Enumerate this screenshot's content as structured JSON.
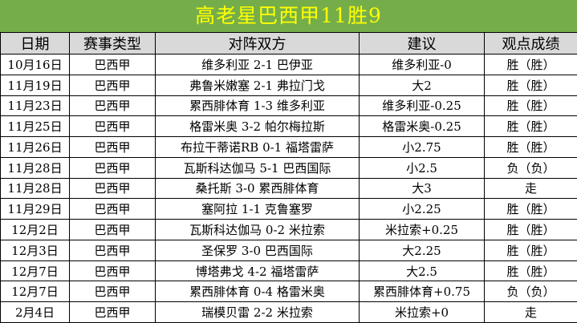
{
  "title": "高老星巴西甲11胜9",
  "table": {
    "headers": [
      "日期",
      "赛事类型",
      "对阵双方",
      "建议",
      "观点成绩"
    ],
    "rows": [
      {
        "date": "10月16日",
        "league": "巴西甲",
        "match": "维多利亚 2-1 巴伊亚",
        "tip": "维多利亚-0",
        "result": "胜（胜）",
        "result_type": "win"
      },
      {
        "date": "11月19日",
        "league": "巴西甲",
        "match": "弗鲁米嫩塞 2-1 弗拉门戈",
        "tip": "大2",
        "result": "胜（胜）",
        "result_type": "win"
      },
      {
        "date": "11月23日",
        "league": "巴西甲",
        "match": "累西腓体育 1-3 维多利亚",
        "tip": "维多利亚-0.25",
        "result": "胜（胜）",
        "result_type": "win"
      },
      {
        "date": "11月25日",
        "league": "巴西甲",
        "match": "格雷米奥 3-2 帕尔梅拉斯",
        "tip": "格雷米奥-0.25",
        "result": "胜（胜）",
        "result_type": "win"
      },
      {
        "date": "11月26日",
        "league": "巴西甲",
        "match": "布拉干蒂诺RB 0-1 福塔雷萨",
        "tip": "小2.75",
        "result": "胜（胜）",
        "result_type": "win"
      },
      {
        "date": "11月28日",
        "league": "巴西甲",
        "match": "瓦斯科达伽马 5-1 巴西国际",
        "tip": "小2.5",
        "result": "负（负）",
        "result_type": "loss"
      },
      {
        "date": "11月28日",
        "league": "巴西甲",
        "match": "桑托斯 3-0 累西腓体育",
        "tip": "大3",
        "result": "走",
        "result_type": "push"
      },
      {
        "date": "11月29日",
        "league": "巴西甲",
        "match": "塞阿拉 1-1 克鲁塞罗",
        "tip": "小2.25",
        "result": "胜（胜）",
        "result_type": "win"
      },
      {
        "date": "12月2日",
        "league": "巴西甲",
        "match": "瓦斯科达伽马 0-2 米拉索",
        "tip": "米拉索+0.25",
        "result": "胜（胜）",
        "result_type": "win"
      },
      {
        "date": "12月3日",
        "league": "巴西甲",
        "match": "圣保罗 3-0 巴西国际",
        "tip": "大2.25",
        "result": "胜（胜）",
        "result_type": "win"
      },
      {
        "date": "12月7日",
        "league": "巴西甲",
        "match": "博塔弗戈 4-2 福塔雷萨",
        "tip": "大2.5",
        "result": "胜（胜）",
        "result_type": "win"
      },
      {
        "date": "12月7日",
        "league": "巴西甲",
        "match": "累西腓体育 0-4 格雷米奥",
        "tip": "累西腓体育+0.75",
        "result": "负（负）",
        "result_type": "loss"
      },
      {
        "date": "2月4日",
        "league": "巴西甲",
        "match": "瑞模贝雷 2-2 米拉索",
        "tip": "米拉索+0",
        "result": "走",
        "result_type": "push"
      }
    ]
  },
  "colors": {
    "title_bg": "#75AD4B",
    "title_text": "#FFFF00",
    "header_bg": "#D9D9D9",
    "highlight_bg": "#F8CBAD",
    "highlight_text": "#FF2B22",
    "border": "#000000"
  }
}
